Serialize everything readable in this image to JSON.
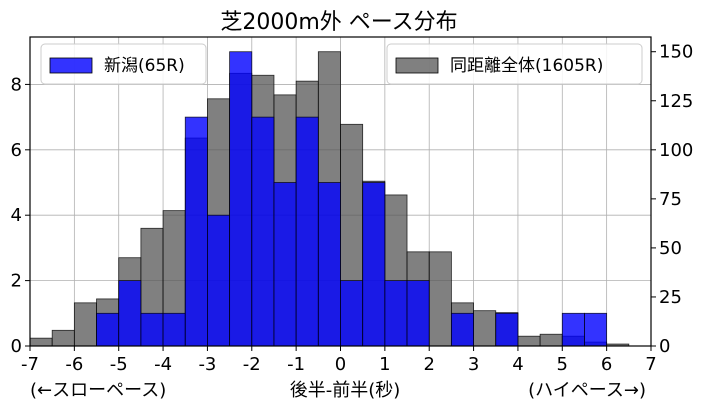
{
  "chart_data": {
    "type": "bar",
    "title": "芝2000m外 ペース分布",
    "xlabel": "後半-前半(秒)",
    "x_annotation_left": "(←スローペース)",
    "x_annotation_right": "(ハイペース→)",
    "xlim": [
      -7,
      7
    ],
    "xticks": [
      "-7",
      "-6",
      "-5",
      "-4",
      "-3",
      "-2",
      "-1",
      "0",
      "1",
      "2",
      "3",
      "4",
      "5",
      "6",
      "7"
    ],
    "ylim_left": [
      0,
      9.45
    ],
    "yticks_left": [
      "0",
      "2",
      "4",
      "6",
      "8"
    ],
    "ylim_right": [
      0,
      157.5
    ],
    "yticks_right": [
      "0",
      "25",
      "50",
      "75",
      "100",
      "125",
      "150"
    ],
    "grid": true,
    "bin_edges": [
      -7,
      -6.5,
      -6,
      -5.5,
      -5,
      -4.5,
      -4,
      -3.5,
      -3,
      -2.5,
      -2,
      -1.5,
      -1,
      -0.5,
      0,
      0.5,
      1,
      1.5,
      2,
      2.5,
      3,
      3.5,
      4,
      4.5,
      5,
      5.5,
      6,
      6.5
    ],
    "series": [
      {
        "name": "新潟(65R)",
        "axis": "left",
        "color": "#0000ff",
        "alpha": 0.8,
        "values": [
          0,
          0,
          0,
          1,
          2,
          1,
          1,
          7,
          4,
          9,
          7,
          5,
          7,
          5,
          2,
          5,
          2,
          2,
          0,
          1,
          0,
          1,
          0,
          0,
          1,
          1,
          0
        ]
      },
      {
        "name": "同距離全体(1605R)",
        "axis": "right",
        "color": "#555555",
        "alpha": 0.75,
        "values": [
          4,
          8,
          22,
          24,
          45,
          60,
          69,
          106,
          126,
          139,
          138,
          128,
          135,
          150,
          113,
          84,
          77,
          48,
          48,
          22,
          18,
          17,
          5,
          6,
          5,
          2,
          1
        ]
      }
    ],
    "legend": [
      {
        "label": "新潟(65R)",
        "placement": "upper-left"
      },
      {
        "label": "同距離全体(1605R)",
        "placement": "upper-right"
      }
    ]
  }
}
